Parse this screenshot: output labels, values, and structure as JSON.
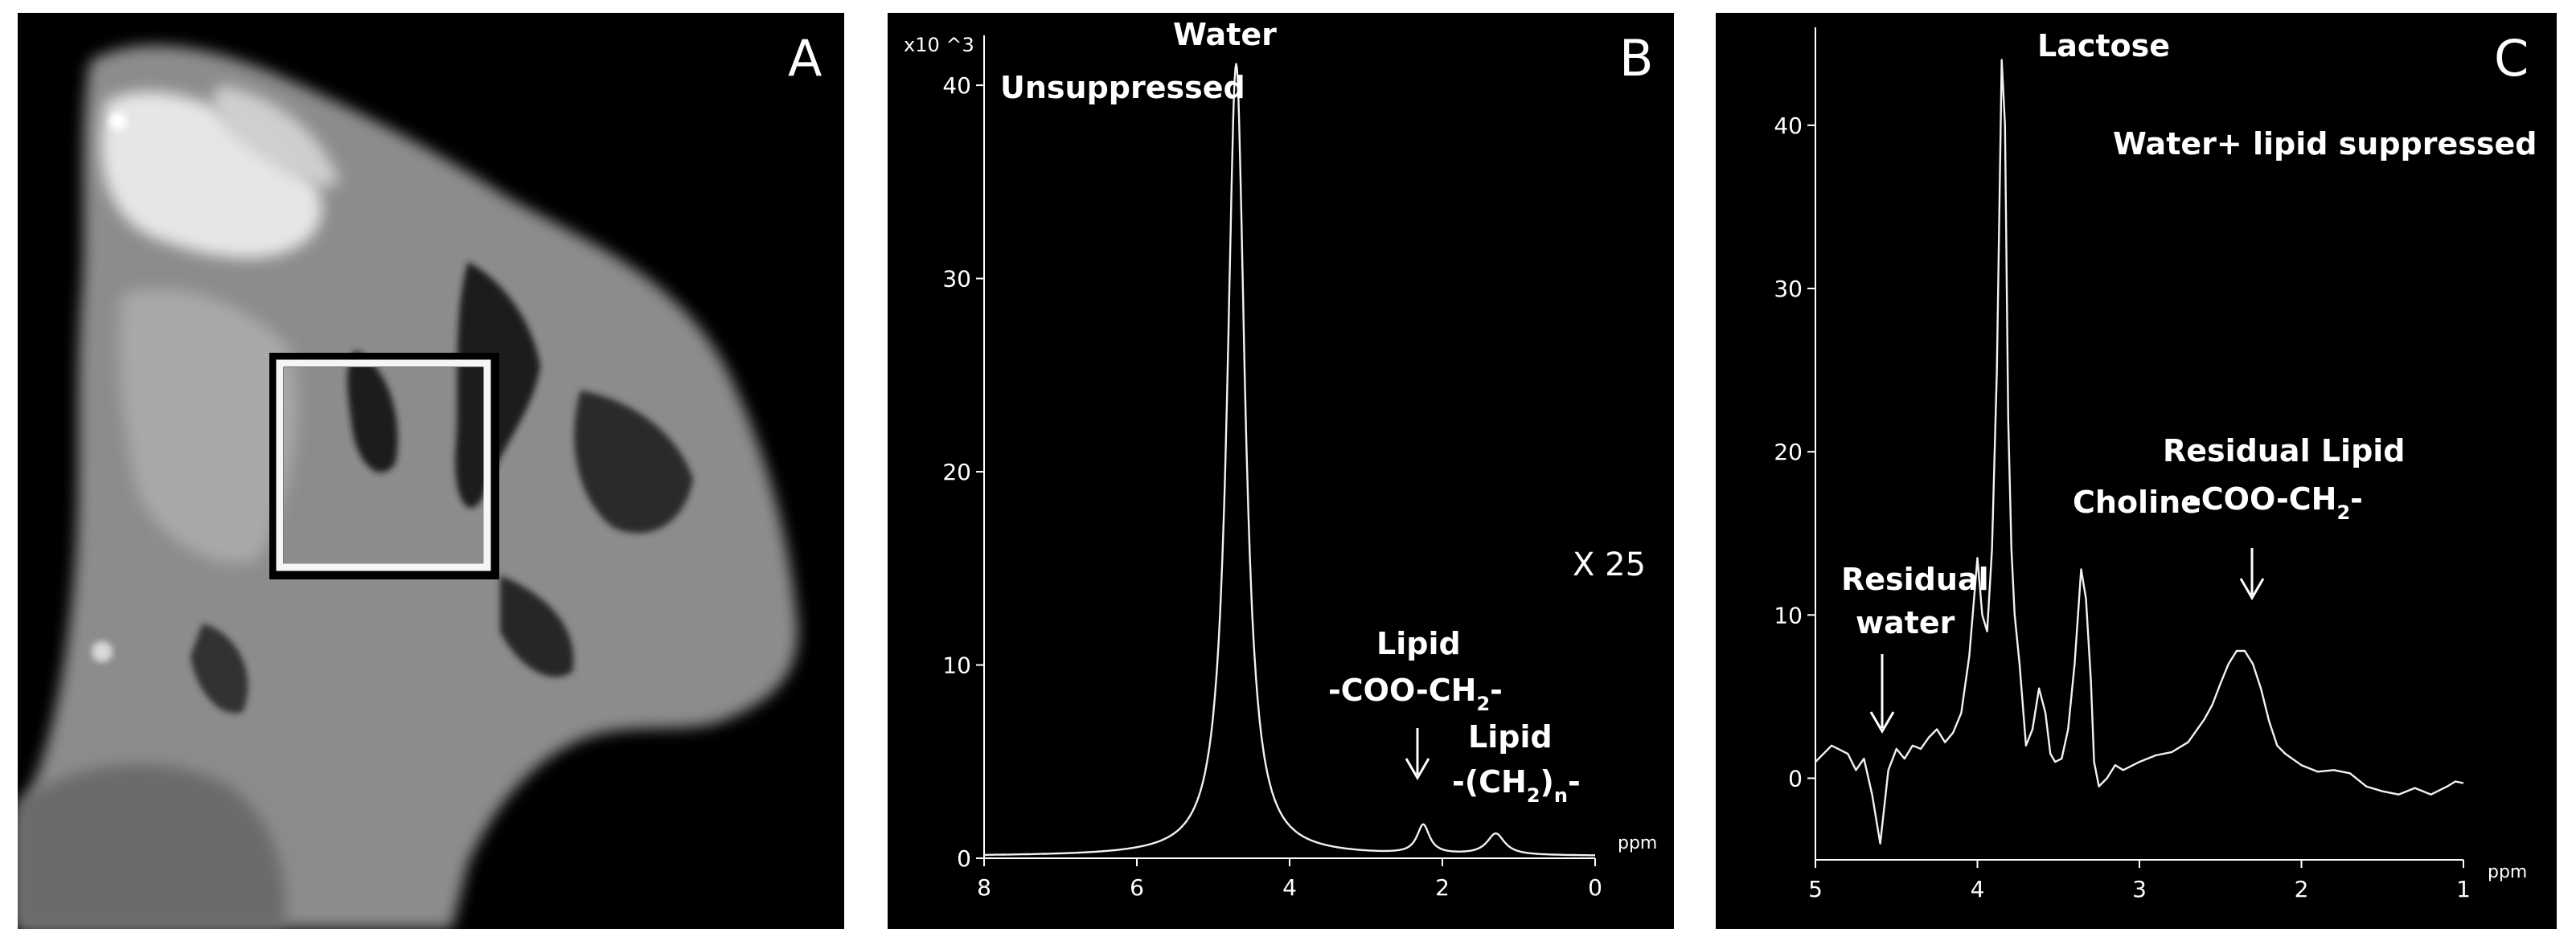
{
  "panels": {
    "a": {
      "letter": "A"
    },
    "b": {
      "letter": "B",
      "scale_note": "X 25"
    },
    "c": {
      "letter": "C",
      "condition": "Water+ lipid suppressed"
    }
  },
  "chart_data": [
    {
      "panel": "B",
      "type": "line",
      "title": "Unsuppressed",
      "ylabel_multiplier": "x10 ^3",
      "xlabel": "ppm",
      "xlim": [
        8,
        0
      ],
      "ylim": [
        0,
        42
      ],
      "xticks": [
        8,
        6,
        4,
        2,
        0
      ],
      "yticks": [
        0,
        10,
        20,
        30,
        40
      ],
      "peaks": [
        {
          "name": "Water",
          "ppm": 4.7,
          "height": 41.0,
          "width": 0.14
        },
        {
          "name": "Lipid -COO-CH2-",
          "ppm": 2.25,
          "height": 1.5,
          "width": 0.1
        },
        {
          "name": "Lipid -(CH2)n-",
          "ppm": 1.3,
          "height": 1.1,
          "width": 0.14
        }
      ],
      "baseline": 0.1,
      "annotations": [
        {
          "id": "water",
          "lines": [
            "Water"
          ]
        },
        {
          "id": "lipid1",
          "lines": [
            "Lipid",
            "-COO-CH",
            "2",
            "-"
          ]
        },
        {
          "id": "lipid2",
          "lines": [
            "Lipid",
            "-(CH",
            "2",
            ")",
            "n",
            "-"
          ]
        }
      ]
    },
    {
      "panel": "C",
      "type": "line",
      "xlabel": "ppm",
      "xlim": [
        5,
        1
      ],
      "ylim": [
        -5,
        46
      ],
      "xticks": [
        5,
        4,
        3,
        2,
        1
      ],
      "yticks": [
        0,
        10,
        20,
        30,
        40
      ],
      "series": {
        "name": "Water + lipid suppressed spectrum",
        "x": [
          5.0,
          4.9,
          4.8,
          4.75,
          4.7,
          4.65,
          4.6,
          4.55,
          4.5,
          4.45,
          4.4,
          4.35,
          4.3,
          4.25,
          4.2,
          4.15,
          4.1,
          4.05,
          4.0,
          3.97,
          3.94,
          3.91,
          3.88,
          3.85,
          3.83,
          3.81,
          3.79,
          3.77,
          3.74,
          3.7,
          3.66,
          3.62,
          3.58,
          3.55,
          3.52,
          3.48,
          3.44,
          3.4,
          3.36,
          3.33,
          3.3,
          3.28,
          3.25,
          3.2,
          3.15,
          3.1,
          3.0,
          2.9,
          2.8,
          2.7,
          2.6,
          2.55,
          2.5,
          2.45,
          2.4,
          2.35,
          2.3,
          2.25,
          2.2,
          2.15,
          2.1,
          2.0,
          1.9,
          1.8,
          1.7,
          1.6,
          1.5,
          1.4,
          1.3,
          1.2,
          1.1,
          1.05,
          1.0
        ],
        "y": [
          1.0,
          2.0,
          1.5,
          0.5,
          1.2,
          -1.0,
          -4.0,
          0.5,
          1.8,
          1.2,
          2.0,
          1.8,
          2.5,
          3.0,
          2.2,
          2.8,
          4.0,
          7.5,
          13.5,
          10.0,
          9.0,
          14.0,
          25.0,
          44.0,
          40.0,
          22.0,
          14.0,
          10.0,
          7.0,
          2.0,
          3.0,
          5.5,
          4.0,
          1.5,
          1.0,
          1.2,
          3.0,
          7.0,
          12.8,
          11.0,
          6.0,
          1.0,
          -0.5,
          0.0,
          0.8,
          0.5,
          1.0,
          1.4,
          1.6,
          2.2,
          3.6,
          4.5,
          5.8,
          7.0,
          7.8,
          7.8,
          7.0,
          5.5,
          3.5,
          2.0,
          1.5,
          0.8,
          0.4,
          0.5,
          0.3,
          -0.5,
          -0.8,
          -1.0,
          -0.6,
          -1.0,
          -0.5,
          -0.2,
          -0.3
        ]
      },
      "annotations": [
        {
          "id": "lactose",
          "lines": [
            "Lactose"
          ]
        },
        {
          "id": "residual_water",
          "lines": [
            "Residual",
            "water"
          ]
        },
        {
          "id": "choline",
          "lines": [
            "Choline"
          ]
        },
        {
          "id": "residual_lipid",
          "lines": [
            "Residual Lipid",
            "-COO-CH",
            "2",
            "-"
          ]
        }
      ]
    }
  ]
}
